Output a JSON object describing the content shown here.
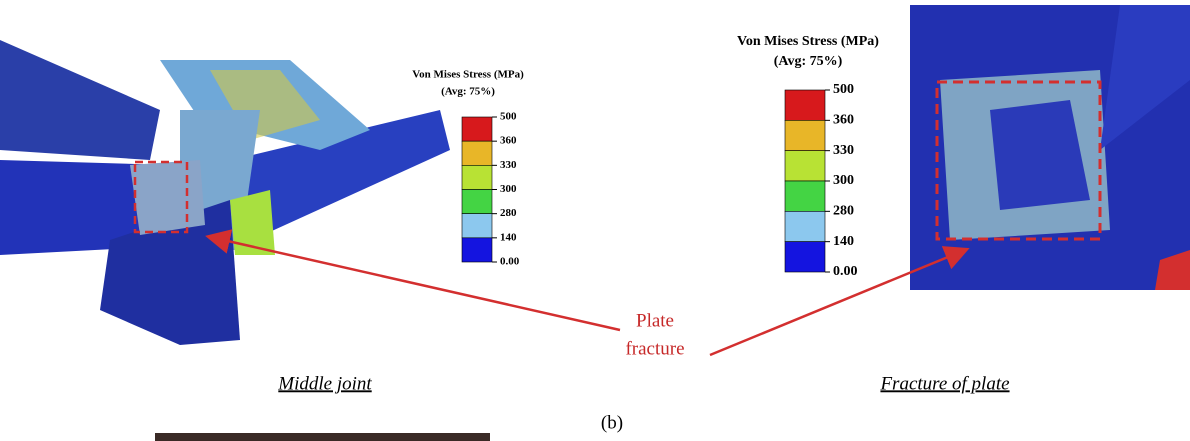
{
  "legends": [
    {
      "title": "Von Mises Stress (MPa)",
      "subtitle": "(Avg: 75%)",
      "ticks": [
        "500",
        "360",
        "330",
        "300",
        "280",
        "140",
        "0.00"
      ]
    },
    {
      "title": "Von Mises Stress (MPa)",
      "subtitle": "(Avg: 75%)",
      "ticks": [
        "500",
        "360",
        "330",
        "300",
        "280",
        "140",
        "0.00"
      ]
    }
  ],
  "annotation": {
    "line1": "Plate",
    "line2": "fracture"
  },
  "captions": [
    "Middle joint",
    "Fracture of plate"
  ],
  "panel_label": "(b)"
}
